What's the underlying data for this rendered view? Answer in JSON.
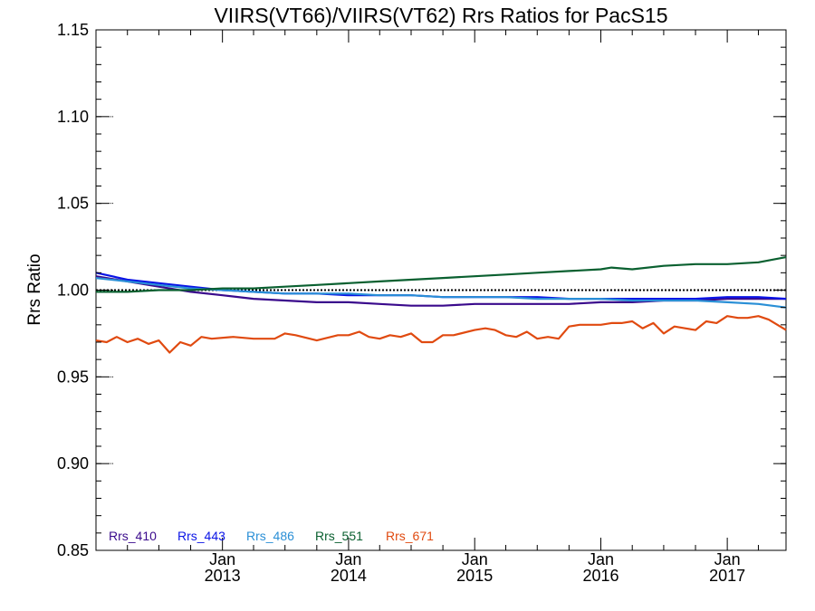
{
  "chart_data": {
    "type": "line",
    "title": "VIIRS(VT66)/VIIRS(VT62)  Rrs Ratios for PacS15",
    "xlabel": "",
    "ylabel": "Rrs Ratio",
    "ylim": [
      0.85,
      1.15
    ],
    "y_ticks": [
      "0.85",
      "0.90",
      "0.95",
      "1.00",
      "1.05",
      "1.10",
      "1.15"
    ],
    "xlim": [
      "2012-01-01",
      "2017-06-20"
    ],
    "x_ticks": [
      {
        "date": "2013-01-01",
        "month": "Jan",
        "year": "2013"
      },
      {
        "date": "2014-01-01",
        "month": "Jan",
        "year": "2014"
      },
      {
        "date": "2015-01-01",
        "month": "Jan",
        "year": "2015"
      },
      {
        "date": "2016-01-01",
        "month": "Jan",
        "year": "2016"
      },
      {
        "date": "2017-01-01",
        "month": "Jan",
        "year": "2017"
      }
    ],
    "reference_line": 1.0,
    "legend_position": "bottom-left",
    "series": [
      {
        "name": "Rrs_410",
        "color": "#3a0a8c",
        "x": [
          "2012-01-01",
          "2012-04-01",
          "2012-07-01",
          "2012-10-01",
          "2013-01-01",
          "2013-04-01",
          "2013-07-01",
          "2013-10-01",
          "2014-01-01",
          "2014-04-01",
          "2014-07-01",
          "2014-10-01",
          "2015-01-01",
          "2015-04-01",
          "2015-07-01",
          "2015-10-01",
          "2016-01-01",
          "2016-04-01",
          "2016-07-01",
          "2016-10-01",
          "2017-01-01",
          "2017-04-01",
          "2017-06-20"
        ],
        "y": [
          1.008,
          1.005,
          1.002,
          0.999,
          0.997,
          0.995,
          0.994,
          0.993,
          0.993,
          0.992,
          0.991,
          0.991,
          0.992,
          0.992,
          0.992,
          0.992,
          0.993,
          0.993,
          0.994,
          0.994,
          0.995,
          0.995,
          0.995
        ]
      },
      {
        "name": "Rrs_443",
        "color": "#0a14e6",
        "x": [
          "2012-01-01",
          "2012-04-01",
          "2012-07-01",
          "2012-10-01",
          "2013-01-01",
          "2013-04-01",
          "2013-07-01",
          "2013-10-01",
          "2014-01-01",
          "2014-04-01",
          "2014-07-01",
          "2014-10-01",
          "2015-01-01",
          "2015-04-01",
          "2015-07-01",
          "2015-10-01",
          "2016-01-01",
          "2016-04-01",
          "2016-07-01",
          "2016-10-01",
          "2017-01-01",
          "2017-04-01",
          "2017-06-20"
        ],
        "y": [
          1.01,
          1.006,
          1.004,
          1.002,
          1.0,
          0.999,
          0.998,
          0.998,
          0.997,
          0.997,
          0.997,
          0.996,
          0.996,
          0.996,
          0.996,
          0.995,
          0.995,
          0.995,
          0.995,
          0.995,
          0.996,
          0.996,
          0.995
        ]
      },
      {
        "name": "Rrs_486",
        "color": "#2a8fd6",
        "x": [
          "2012-01-01",
          "2012-04-01",
          "2012-07-01",
          "2012-10-01",
          "2013-01-01",
          "2013-04-01",
          "2013-07-01",
          "2013-10-01",
          "2014-01-01",
          "2014-04-01",
          "2014-07-01",
          "2014-10-01",
          "2015-01-01",
          "2015-04-01",
          "2015-07-01",
          "2015-10-01",
          "2016-01-01",
          "2016-04-01",
          "2016-07-01",
          "2016-10-01",
          "2017-01-01",
          "2017-04-01",
          "2017-06-20"
        ],
        "y": [
          1.007,
          1.005,
          1.003,
          1.001,
          1.0,
          0.999,
          0.998,
          0.998,
          0.998,
          0.997,
          0.997,
          0.996,
          0.996,
          0.996,
          0.995,
          0.995,
          0.995,
          0.994,
          0.994,
          0.994,
          0.993,
          0.992,
          0.99
        ]
      },
      {
        "name": "Rrs_551",
        "color": "#0a6030",
        "x": [
          "2012-01-01",
          "2012-04-01",
          "2012-07-01",
          "2012-10-01",
          "2013-01-01",
          "2013-04-01",
          "2013-07-01",
          "2013-10-01",
          "2014-01-01",
          "2014-04-01",
          "2014-07-01",
          "2014-10-01",
          "2015-01-01",
          "2015-04-01",
          "2015-07-01",
          "2015-10-01",
          "2016-01-01",
          "2016-02-01",
          "2016-04-01",
          "2016-07-01",
          "2016-10-01",
          "2017-01-01",
          "2017-04-01",
          "2017-06-20"
        ],
        "y": [
          0.999,
          0.999,
          1.0,
          1.0,
          1.001,
          1.001,
          1.002,
          1.003,
          1.004,
          1.005,
          1.006,
          1.007,
          1.008,
          1.009,
          1.01,
          1.011,
          1.012,
          1.013,
          1.012,
          1.014,
          1.015,
          1.015,
          1.016,
          1.019
        ]
      },
      {
        "name": "Rrs_671",
        "color": "#e04a10",
        "x": [
          "2012-01-01",
          "2012-02-01",
          "2012-03-01",
          "2012-04-01",
          "2012-05-01",
          "2012-06-01",
          "2012-07-01",
          "2012-08-01",
          "2012-09-01",
          "2012-10-01",
          "2012-11-01",
          "2012-12-01",
          "2013-02-01",
          "2013-04-01",
          "2013-06-01",
          "2013-07-01",
          "2013-08-01",
          "2013-10-01",
          "2013-12-01",
          "2014-01-01",
          "2014-02-01",
          "2014-03-01",
          "2014-04-01",
          "2014-05-01",
          "2014-06-01",
          "2014-07-01",
          "2014-08-01",
          "2014-09-01",
          "2014-10-01",
          "2014-11-01",
          "2015-01-01",
          "2015-02-01",
          "2015-03-01",
          "2015-04-01",
          "2015-05-01",
          "2015-06-01",
          "2015-07-01",
          "2015-08-01",
          "2015-09-01",
          "2015-10-01",
          "2015-11-01",
          "2016-01-01",
          "2016-02-01",
          "2016-03-01",
          "2016-04-01",
          "2016-05-01",
          "2016-06-01",
          "2016-07-01",
          "2016-08-01",
          "2016-09-01",
          "2016-10-01",
          "2016-11-01",
          "2016-12-01",
          "2017-01-01",
          "2017-02-01",
          "2017-03-01",
          "2017-04-01",
          "2017-05-01",
          "2017-06-20"
        ],
        "y": [
          0.971,
          0.97,
          0.973,
          0.97,
          0.972,
          0.969,
          0.971,
          0.964,
          0.97,
          0.968,
          0.973,
          0.972,
          0.973,
          0.972,
          0.972,
          0.975,
          0.974,
          0.971,
          0.974,
          0.974,
          0.976,
          0.973,
          0.972,
          0.974,
          0.973,
          0.975,
          0.97,
          0.97,
          0.974,
          0.974,
          0.977,
          0.978,
          0.977,
          0.974,
          0.973,
          0.976,
          0.972,
          0.973,
          0.972,
          0.979,
          0.98,
          0.98,
          0.981,
          0.981,
          0.982,
          0.978,
          0.981,
          0.975,
          0.979,
          0.978,
          0.977,
          0.982,
          0.981,
          0.985,
          0.984,
          0.984,
          0.985,
          0.983,
          0.977
        ]
      }
    ]
  }
}
